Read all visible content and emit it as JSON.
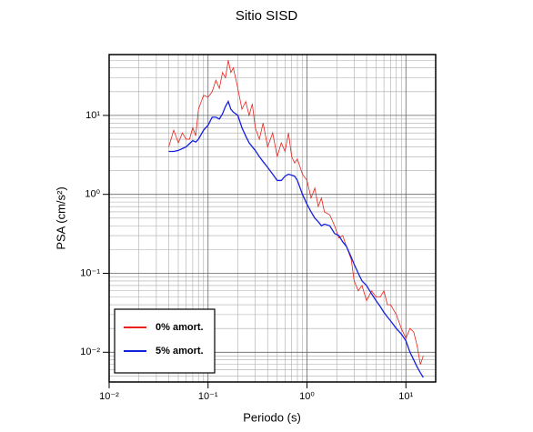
{
  "chart_data": {
    "type": "line",
    "title": "Sitio SISD",
    "x_label": "Periodo (s)",
    "y_label": "PSA (cm/s²)",
    "log_x": true,
    "log_y": true,
    "grid": "major+minor",
    "legend": "lower left",
    "xlim": [
      0.01,
      20
    ],
    "ylim": [
      0.0042,
      59
    ],
    "xticks": [
      {
        "value": 0.01,
        "label": "10⁻²"
      },
      {
        "value": 0.1,
        "label": "10⁻¹"
      },
      {
        "value": 1,
        "label": "10⁰"
      },
      {
        "value": 10,
        "label": "10¹"
      }
    ],
    "yticks": [
      {
        "value": 0.01,
        "label": "10⁻²"
      },
      {
        "value": 0.1,
        "label": "10⁻¹"
      },
      {
        "value": 1,
        "label": "10⁰"
      },
      {
        "value": 10,
        "label": "10¹"
      }
    ],
    "x": [
      0.04,
      0.045,
      0.05,
      0.055,
      0.06,
      0.065,
      0.07,
      0.075,
      0.08,
      0.09,
      0.1,
      0.11,
      0.12,
      0.13,
      0.14,
      0.15,
      0.16,
      0.17,
      0.18,
      0.2,
      0.22,
      0.24,
      0.26,
      0.28,
      0.3,
      0.33,
      0.36,
      0.4,
      0.45,
      0.5,
      0.55,
      0.6,
      0.65,
      0.7,
      0.75,
      0.8,
      0.9,
      1.0,
      1.1,
      1.2,
      1.3,
      1.4,
      1.5,
      1.7,
      1.9,
      2.1,
      2.3,
      2.5,
      2.8,
      3.0,
      3.3,
      3.6,
      4,
      4.5,
      5,
      5.5,
      6,
      6.5,
      7,
      8,
      9,
      10,
      11,
      12,
      13,
      14,
      15
    ],
    "series": [
      {
        "name": "0% amort.",
        "color": "#e8231c",
        "values": [
          4.0,
          6.5,
          4.5,
          6,
          5,
          5,
          7,
          5.5,
          12,
          18,
          17,
          20,
          28,
          22,
          35,
          30,
          50,
          35,
          40,
          22,
          12,
          15,
          10,
          14,
          7,
          5,
          8,
          4,
          6,
          3,
          4.5,
          3.5,
          6,
          3,
          2.5,
          2.8,
          1.8,
          1.5,
          0.9,
          1.2,
          0.7,
          0.9,
          0.6,
          0.55,
          0.4,
          0.28,
          0.3,
          0.22,
          0.15,
          0.08,
          0.06,
          0.07,
          0.045,
          0.06,
          0.05,
          0.05,
          0.06,
          0.04,
          0.04,
          0.03,
          0.02,
          0.015,
          0.02,
          0.018,
          0.012,
          0.007,
          0.009
        ]
      },
      {
        "name": "5% amort.",
        "color": "#1420e0",
        "values": [
          3.5,
          3.5,
          3.6,
          3.8,
          4.0,
          4.4,
          4.8,
          4.6,
          5.0,
          6.5,
          7.5,
          9.5,
          9.5,
          9,
          10.5,
          13,
          15,
          12,
          11,
          10,
          7,
          5.5,
          4.5,
          4.0,
          3.6,
          3.0,
          2.6,
          2.2,
          1.8,
          1.5,
          1.5,
          1.7,
          1.8,
          1.75,
          1.7,
          1.5,
          1.0,
          0.75,
          0.6,
          0.5,
          0.45,
          0.4,
          0.42,
          0.4,
          0.32,
          0.3,
          0.25,
          0.22,
          0.16,
          0.13,
          0.1,
          0.08,
          0.07,
          0.055,
          0.045,
          0.038,
          0.032,
          0.028,
          0.025,
          0.02,
          0.017,
          0.014,
          0.01,
          0.008,
          0.0065,
          0.0055,
          0.0048
        ]
      }
    ]
  }
}
